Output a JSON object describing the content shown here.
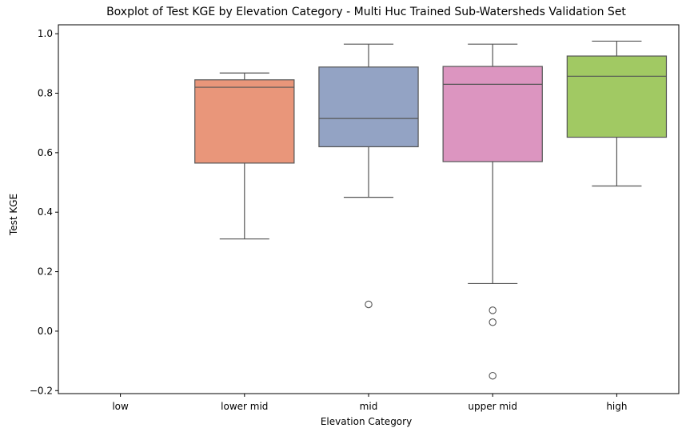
{
  "chart_data": {
    "type": "box",
    "title": "Boxplot of Test KGE by Elevation Category - Multi Huc Trained Sub-Watersheds Validation Set",
    "xlabel": "Elevation Category",
    "ylabel": "Test KGE",
    "ylim": [
      -0.21,
      1.03
    ],
    "yticks": [
      -0.2,
      0.0,
      0.2,
      0.4,
      0.6,
      0.8,
      1.0
    ],
    "ytick_labels": [
      "−0.2",
      "0.0",
      "0.2",
      "0.4",
      "0.6",
      "0.8",
      "1.0"
    ],
    "grid": false,
    "categories": [
      "low",
      "lower mid",
      "mid",
      "upper mid",
      "high"
    ],
    "boxes": [
      {
        "category": "low",
        "empty": true
      },
      {
        "category": "lower mid",
        "whisker_low": 0.31,
        "q1": 0.565,
        "median": 0.82,
        "q3": 0.845,
        "whisker_high": 0.868,
        "outliers": [],
        "color": "#e9967a"
      },
      {
        "category": "mid",
        "whisker_low": 0.45,
        "q1": 0.62,
        "median": 0.715,
        "q3": 0.888,
        "whisker_high": 0.965,
        "outliers": [
          0.09
        ],
        "color": "#93a3c4"
      },
      {
        "category": "upper mid",
        "whisker_low": 0.16,
        "q1": 0.57,
        "median": 0.83,
        "q3": 0.89,
        "whisker_high": 0.965,
        "outliers": [
          0.07,
          0.03,
          -0.15
        ],
        "color": "#dc95c0"
      },
      {
        "category": "high",
        "whisker_low": 0.488,
        "q1": 0.652,
        "median": 0.857,
        "q3": 0.925,
        "whisker_high": 0.975,
        "outliers": [],
        "color": "#a1c963"
      }
    ]
  }
}
